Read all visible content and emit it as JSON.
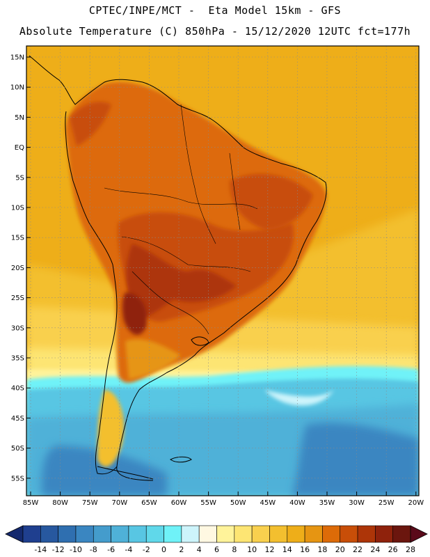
{
  "header": {
    "line1": "CPTEC/INPE/MCT -  Eta Model 15km - GFS",
    "line2": "Absolute Temperature (C) 850hPa - 15/12/2020 12UTC fct=177h"
  },
  "axes": {
    "lat_labels": [
      "15N",
      "10N",
      "5N",
      "EQ",
      "5S",
      "10S",
      "15S",
      "20S",
      "25S",
      "30S",
      "35S",
      "40S",
      "45S",
      "50S",
      "55S"
    ],
    "lon_labels": [
      "85W",
      "80W",
      "75W",
      "70W",
      "65W",
      "60W",
      "55W",
      "50W",
      "45W",
      "40W",
      "35W",
      "30W",
      "25W",
      "20W"
    ]
  },
  "colorbar": {
    "labels": [
      "-14",
      "-12",
      "-10",
      "-8",
      "-6",
      "-4",
      "-2",
      "0",
      "2",
      "4",
      "6",
      "8",
      "10",
      "12",
      "14",
      "16",
      "18",
      "20",
      "22",
      "24",
      "26",
      "28"
    ],
    "colors": [
      "#1f3f8f",
      "#27589f",
      "#2f6fb0",
      "#3a86c1",
      "#449ccc",
      "#4fb1d8",
      "#58c6e3",
      "#60d8ea",
      "#6ff2f8",
      "#cdf4fb",
      "#fff8e2",
      "#fff39a",
      "#fde573",
      "#f9d04e",
      "#f3bf2f",
      "#eeae19",
      "#e69512",
      "#dd6b08",
      "#c84e08",
      "#ad3508",
      "#8f220c",
      "#6b160e"
    ],
    "low_color": "#14296e",
    "high_color": "#5a0a1a"
  },
  "map_colors": {
    "ocean_warm": "#eeae19",
    "ocean_mid": "#f3bf2f",
    "land_hot": "#dd6b08",
    "land_hotter": "#c84e08",
    "land_peak": "#8f220c",
    "cold_ocean": "#4fb1d8",
    "coast": "#000000"
  }
}
